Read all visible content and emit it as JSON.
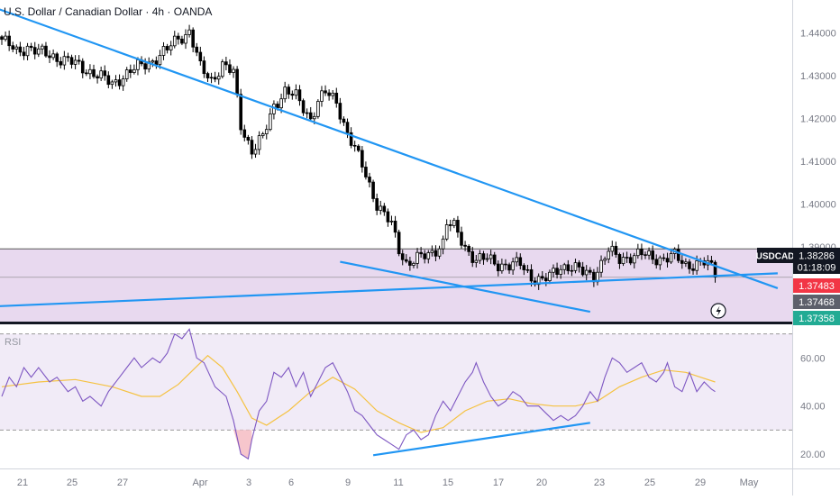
{
  "header": {
    "title": "U.S. Dollar / Canadian Dollar · 4h · OANDA"
  },
  "price_axis": {
    "ticks": [
      "1.44000",
      "1.43000",
      "1.42000",
      "1.41000",
      "1.40000",
      "1.39000"
    ]
  },
  "price_badges": {
    "symbol": "USDCAD",
    "last": "1.38286",
    "countdown": "01:18:09",
    "bid": "1.37483",
    "mid": "1.37468",
    "ask": "1.37358"
  },
  "rsi": {
    "label": "RSI",
    "ticks": [
      "60.00",
      "40.00",
      "20.00"
    ]
  },
  "time_axis": {
    "labels": [
      "21",
      "25",
      "27",
      "Apr",
      "3",
      "6",
      "9",
      "11",
      "15",
      "17",
      "20",
      "23",
      "25",
      "29",
      "May"
    ]
  },
  "colors": {
    "up": "#ffffff",
    "down": "#000000",
    "trendline": "#2196f3",
    "zone": "#e8d9ef",
    "rsi_line": "#7e57c2",
    "rsi_ma": "#f5c242",
    "badge_dark": "#131722",
    "badge_red": "#f23645",
    "badge_grey": "#5d606b",
    "badge_teal": "#22ab94"
  },
  "chart_data": [
    {
      "type": "candlestick",
      "title": "U.S. Dollar / Canadian Dollar · 4h · OANDA",
      "ylim": [
        1.3725,
        1.4477
      ],
      "close_points": [
        [
          0,
          1.4385
        ],
        [
          4,
          1.4355
        ],
        [
          7,
          1.4368
        ],
        [
          10,
          1.4355
        ],
        [
          14,
          1.4345
        ],
        [
          18,
          1.4335
        ],
        [
          22,
          1.4318
        ],
        [
          26,
          1.4302
        ],
        [
          30,
          1.428
        ],
        [
          33,
          1.43
        ],
        [
          37,
          1.432
        ],
        [
          41,
          1.4335
        ],
        [
          45,
          1.436
        ],
        [
          48,
          1.439
        ],
        [
          50,
          1.4395
        ],
        [
          51,
          1.4405
        ],
        [
          54,
          1.4318
        ],
        [
          57,
          1.429
        ],
        [
          60,
          1.4325
        ],
        [
          63,
          1.4305
        ],
        [
          65,
          1.4185
        ],
        [
          68,
          1.4125
        ],
        [
          71,
          1.4155
        ],
        [
          74,
          1.423
        ],
        [
          77,
          1.4265
        ],
        [
          80,
          1.425
        ],
        [
          82,
          1.4225
        ],
        [
          84,
          1.42
        ],
        [
          86,
          1.424
        ],
        [
          88,
          1.426
        ],
        [
          91,
          1.424
        ],
        [
          94,
          1.4165
        ],
        [
          98,
          1.409
        ],
        [
          102,
          1.4
        ],
        [
          106,
          1.395
        ],
        [
          108,
          1.3895
        ],
        [
          110,
          1.3862
        ],
        [
          113,
          1.3872
        ],
        [
          116,
          1.388
        ],
        [
          118,
          1.3895
        ],
        [
          120,
          1.391
        ],
        [
          121,
          1.3955
        ],
        [
          123,
          1.3945
        ],
        [
          126,
          1.39
        ],
        [
          129,
          1.3868
        ],
        [
          132,
          1.3872
        ],
        [
          135,
          1.386
        ],
        [
          138,
          1.3855
        ],
        [
          141,
          1.386
        ],
        [
          144,
          1.383
        ],
        [
          147,
          1.382
        ],
        [
          149,
          1.383
        ],
        [
          152,
          1.3855
        ],
        [
          155,
          1.3852
        ],
        [
          158,
          1.384
        ],
        [
          161,
          1.3835
        ],
        [
          163,
          1.386
        ],
        [
          165,
          1.389
        ],
        [
          168,
          1.3872
        ],
        [
          171,
          1.3878
        ],
        [
          174,
          1.3882
        ],
        [
          177,
          1.3875
        ],
        [
          180,
          1.3872
        ],
        [
          183,
          1.3878
        ],
        [
          186,
          1.3858
        ],
        [
          189,
          1.386
        ],
        [
          191,
          1.3862
        ],
        [
          193,
          1.3852
        ],
        [
          194,
          1.3829
        ]
      ],
      "trendlines": [
        {
          "name": "descending resistance",
          "from": [
            -4.5,
            1.4467
          ],
          "to": [
            211,
            1.3803
          ]
        },
        {
          "name": "rising support",
          "from": [
            -45,
            1.3745
          ],
          "to": [
            211,
            1.3838
          ]
        },
        {
          "name": "falling support",
          "from": [
            92,
            1.3865
          ],
          "to": [
            160,
            1.3748
          ]
        }
      ],
      "zone": [
        1.372,
        1.3895
      ],
      "last_price": 1.38286
    },
    {
      "type": "line",
      "title": "RSI",
      "ylim": [
        14,
        74
      ],
      "series": [
        {
          "points": [
            [
              0,
              44
            ],
            [
              2,
              52
            ],
            [
              4,
              48
            ],
            [
              6,
              56
            ],
            [
              8,
              52
            ],
            [
              10,
              56
            ],
            [
              13,
              50
            ],
            [
              15,
              52
            ],
            [
              18,
              46
            ],
            [
              20,
              48
            ],
            [
              22,
              42
            ],
            [
              24,
              44
            ],
            [
              27,
              40
            ],
            [
              29,
              46
            ],
            [
              32,
              52
            ],
            [
              34,
              56
            ],
            [
              36,
              60
            ],
            [
              38,
              56
            ],
            [
              41,
              60
            ],
            [
              43,
              58
            ],
            [
              45,
              62
            ],
            [
              47,
              70
            ],
            [
              49,
              68
            ],
            [
              51,
              72
            ],
            [
              53,
              60
            ],
            [
              55,
              58
            ],
            [
              58,
              48
            ],
            [
              61,
              44
            ],
            [
              63,
              34
            ],
            [
              65,
              20
            ],
            [
              67,
              18
            ],
            [
              68,
              26
            ],
            [
              70,
              38
            ],
            [
              72,
              42
            ],
            [
              74,
              54
            ],
            [
              76,
              52
            ],
            [
              78,
              56
            ],
            [
              80,
              48
            ],
            [
              82,
              54
            ],
            [
              84,
              44
            ],
            [
              86,
              50
            ],
            [
              88,
              56
            ],
            [
              90,
              58
            ],
            [
              92,
              52
            ],
            [
              94,
              46
            ],
            [
              96,
              38
            ],
            [
              98,
              36
            ],
            [
              100,
              32
            ],
            [
              102,
              28
            ],
            [
              104,
              26
            ],
            [
              106,
              24
            ],
            [
              108,
              22
            ],
            [
              110,
              28
            ],
            [
              112,
              30
            ],
            [
              114,
              26
            ],
            [
              116,
              28
            ],
            [
              118,
              36
            ],
            [
              120,
              42
            ],
            [
              122,
              38
            ],
            [
              124,
              44
            ],
            [
              126,
              50
            ],
            [
              128,
              54
            ],
            [
              129,
              58
            ],
            [
              131,
              50
            ],
            [
              133,
              44
            ],
            [
              135,
              40
            ],
            [
              137,
              42
            ],
            [
              139,
              46
            ],
            [
              141,
              44
            ],
            [
              143,
              40
            ],
            [
              146,
              40
            ],
            [
              148,
              37
            ],
            [
              150,
              34
            ],
            [
              152,
              36
            ],
            [
              154,
              34
            ],
            [
              156,
              36
            ],
            [
              158,
              40
            ],
            [
              160,
              46
            ],
            [
              162,
              42
            ],
            [
              164,
              52
            ],
            [
              166,
              60
            ],
            [
              168,
              58
            ],
            [
              170,
              54
            ],
            [
              172,
              56
            ],
            [
              174,
              58
            ],
            [
              176,
              52
            ],
            [
              178,
              50
            ],
            [
              180,
              54
            ],
            [
              181,
              58
            ],
            [
              183,
              48
            ],
            [
              185,
              46
            ],
            [
              187,
              54
            ],
            [
              189,
              46
            ],
            [
              191,
              50
            ],
            [
              193,
              47
            ],
            [
              194,
              46
            ]
          ]
        },
        {
          "points": [
            [
              0,
              48
            ],
            [
              10,
              50
            ],
            [
              20,
              51
            ],
            [
              30,
              48
            ],
            [
              38,
              44
            ],
            [
              43,
              44
            ],
            [
              48,
              49
            ],
            [
              52,
              55
            ],
            [
              56,
              61
            ],
            [
              60,
              56
            ],
            [
              64,
              46
            ],
            [
              68,
              35
            ],
            [
              72,
              32
            ],
            [
              78,
              38
            ],
            [
              84,
              46
            ],
            [
              90,
              52
            ],
            [
              96,
              47
            ],
            [
              102,
              38
            ],
            [
              108,
              33
            ],
            [
              114,
              29
            ],
            [
              120,
              31
            ],
            [
              126,
              38
            ],
            [
              132,
              42
            ],
            [
              138,
              43
            ],
            [
              144,
              41
            ],
            [
              150,
              40
            ],
            [
              156,
              40
            ],
            [
              162,
              42
            ],
            [
              168,
              48
            ],
            [
              174,
              52
            ],
            [
              180,
              55
            ],
            [
              186,
              54
            ],
            [
              190,
              52
            ],
            [
              194,
              50
            ]
          ]
        }
      ],
      "trendlines": [
        {
          "name": "rising rsi support",
          "from": [
            101,
            19.5
          ],
          "to": [
            160,
            33
          ]
        }
      ],
      "levels": [
        70,
        30
      ]
    }
  ]
}
